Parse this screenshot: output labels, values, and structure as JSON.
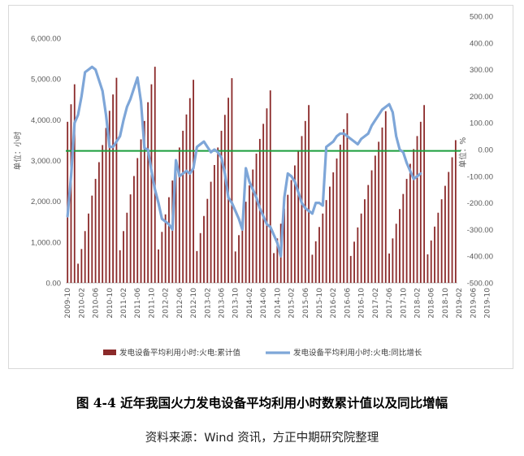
{
  "figure": {
    "caption": "图 4-4  近年我国火力发电设备平均利用小时数累计值以及同比增幅",
    "source": "资料来源：Wind 资讯，方正中期研究院整理"
  },
  "chart_data": {
    "type": "bar",
    "colors": {
      "bar": "#8b2a2a",
      "line": "#7ea6d8",
      "refline": "#1a9e3c",
      "axis_text": "#595959"
    },
    "left_axis": {
      "label": "单位：小时",
      "ylim": [
        0,
        6000
      ],
      "tick_values": [
        0,
        1000,
        2000,
        3000,
        4000,
        5000,
        6000
      ],
      "tick_labels": [
        "0.00",
        "1,000.00",
        "2,000.00",
        "3,000.00",
        "4,000.00",
        "5,000.00",
        "6,000.00"
      ]
    },
    "right_axis": {
      "label": "单位：%",
      "ylim": [
        -500,
        500
      ],
      "tick_values": [
        500,
        400,
        300,
        200,
        100,
        0,
        -100,
        -200,
        -300,
        -400,
        -500
      ],
      "tick_labels": [
        "500.00",
        "400.00",
        "300.00",
        "200.00",
        "100.00",
        "0.00",
        "-100.00",
        "-200.00",
        "-300.00",
        "-400.00",
        "-500.00"
      ]
    },
    "x_tick_labels": [
      "2009-10",
      "2010-02",
      "2010-06",
      "2010-10",
      "2011-02",
      "2011-06",
      "2011-10",
      "2012-02",
      "2012-06",
      "2012-10",
      "2013-02",
      "2013-06",
      "2013-10",
      "2014-02",
      "2014-06",
      "2014-10",
      "2015-02",
      "2015-06",
      "2015-10",
      "2016-02",
      "2016-06",
      "2016-10",
      "2017-02",
      "2017-06",
      "2017-10",
      "2018-02",
      "2018-06",
      "2018-10",
      "2019-02",
      "2019-06",
      "2019-10"
    ],
    "series": [
      {
        "name": "发电设备平均利用小时:火电:累计值",
        "axis": "left",
        "kind": "bar",
        "values": [
          3950,
          4380,
          4870,
          470,
          830,
          1270,
          1700,
          2140,
          2550,
          2960,
          3380,
          3800,
          4220,
          4620,
          5030,
          800,
          1270,
          1720,
          2170,
          2620,
          3060,
          3520,
          3970,
          4430,
          4870,
          5300,
          820,
          1250,
          1680,
          2100,
          2510,
          2920,
          3320,
          3730,
          4130,
          4530,
          4980,
          780,
          1220,
          1640,
          2060,
          2480,
          2890,
          3320,
          3730,
          4120,
          4540,
          5020,
          770,
          1170,
          1580,
          1990,
          2390,
          2780,
          3170,
          3530,
          3900,
          4280,
          4720,
          730,
          1090,
          1450,
          1820,
          2160,
          2520,
          2880,
          3240,
          3600,
          3970,
          4360,
          690,
          1020,
          1370,
          1700,
          2030,
          2360,
          2710,
          3050,
          3390,
          3770,
          4160,
          660,
          1010,
          1360,
          1700,
          2050,
          2400,
          2760,
          3120,
          3460,
          3810,
          4210,
          720,
          1090,
          1450,
          1810,
          2180,
          2550,
          2920,
          3280,
          3600,
          3950,
          4360,
          700,
          1040,
          1380,
          1720,
          2050,
          2380,
          2720,
          3080,
          3500
        ]
      },
      {
        "name": "发电设备平均利用小时:火电:同比增长",
        "axis": "right",
        "kind": "line",
        "values": [
          -250,
          -100,
          100,
          130,
          200,
          290,
          300,
          310,
          300,
          260,
          220,
          130,
          10,
          10,
          30,
          50,
          110,
          160,
          190,
          230,
          270,
          180,
          5,
          0,
          -80,
          -150,
          -200,
          -260,
          -270,
          -280,
          -300,
          -40,
          -100,
          -90,
          -80,
          -90,
          -70,
          10,
          20,
          30,
          10,
          -10,
          0,
          -10,
          -30,
          -90,
          -180,
          -200,
          -230,
          -260,
          -300,
          -70,
          -120,
          -150,
          -180,
          -220,
          -250,
          -280,
          -290,
          -320,
          -350,
          -400,
          -180,
          -90,
          -100,
          -120,
          -160,
          -200,
          -220,
          -230,
          -240,
          -200,
          -200,
          -210,
          10,
          20,
          30,
          50,
          60,
          60,
          50,
          40,
          30,
          20,
          40,
          50,
          60,
          90,
          110,
          130,
          150,
          160,
          170,
          140,
          50,
          0,
          -10,
          -50,
          -80,
          -110,
          -100,
          -90
        ]
      },
      {
        "name": "",
        "axis": "right",
        "kind": "reference-line",
        "values": [
          -5
        ]
      }
    ],
    "legend_position": "bottom",
    "grid": false
  }
}
